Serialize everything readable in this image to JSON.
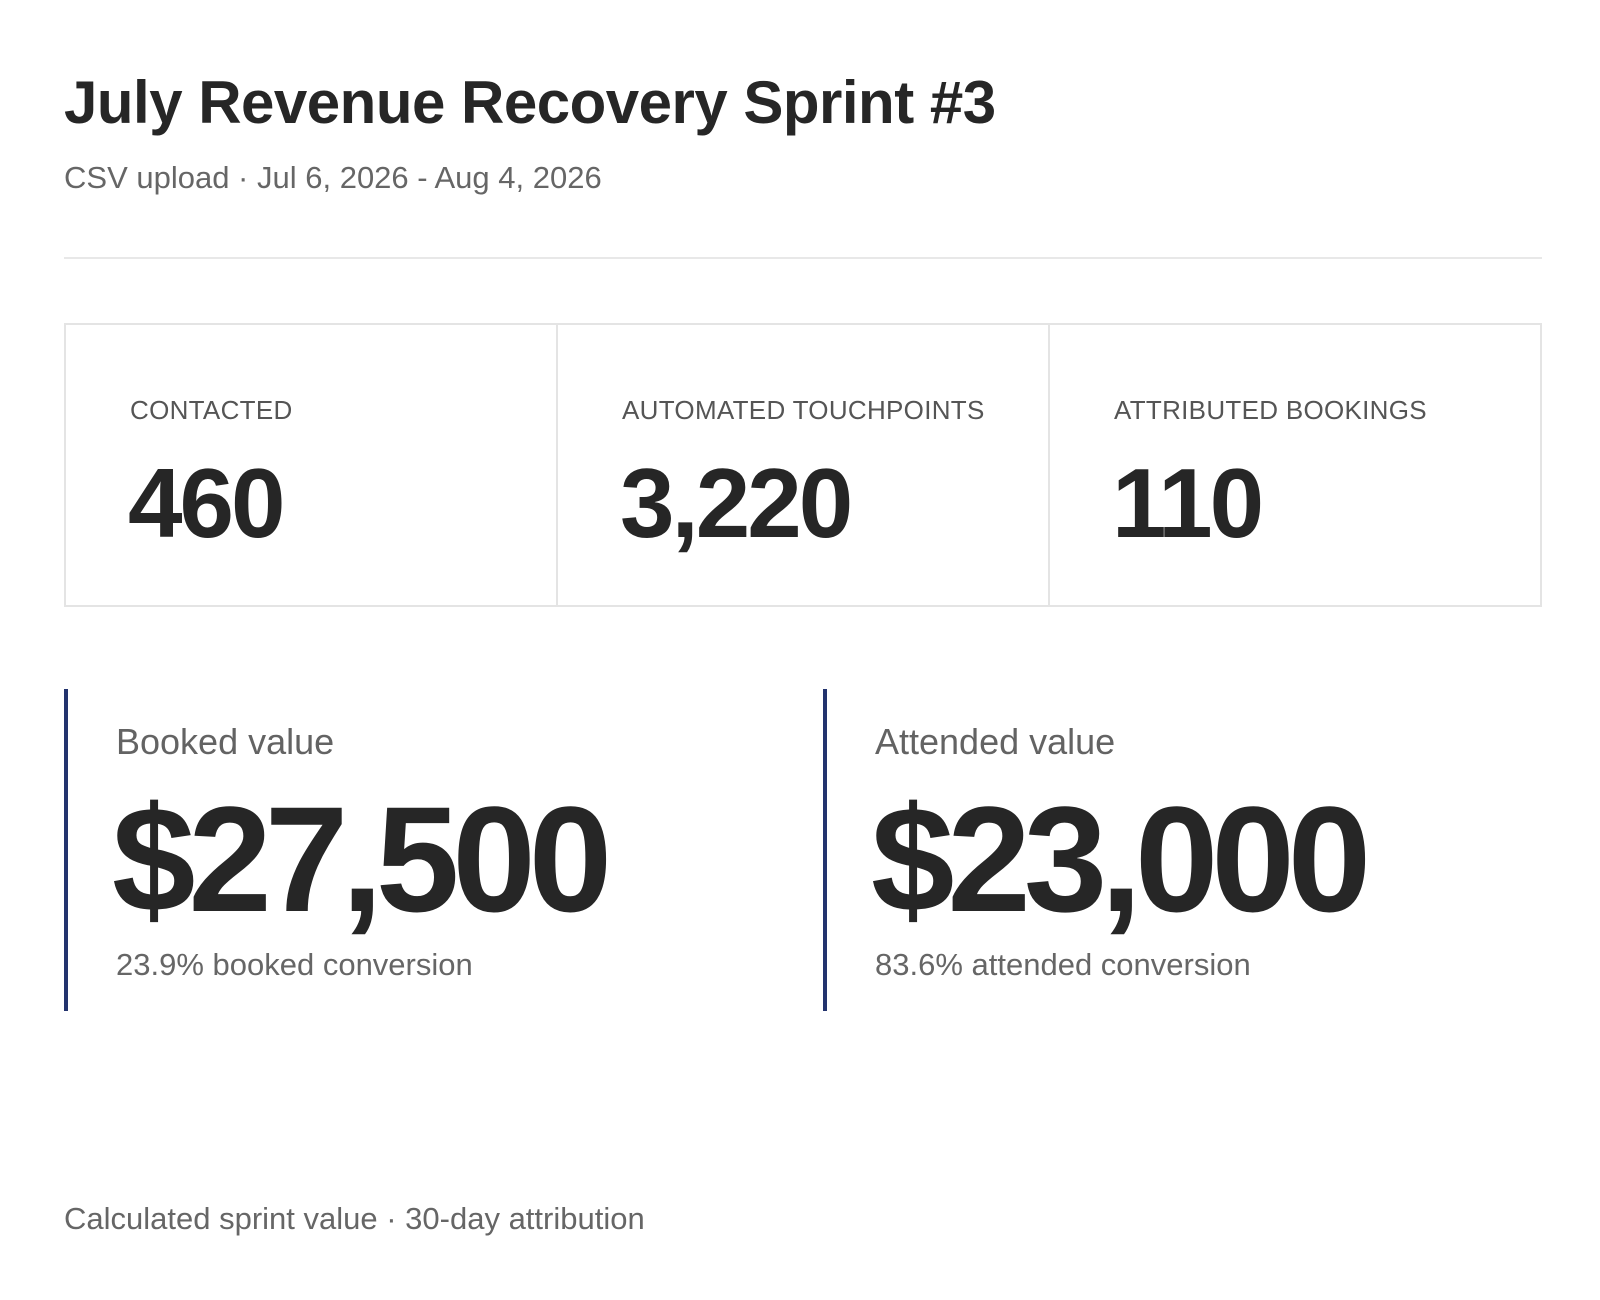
{
  "header": {
    "title": "July Revenue Recovery Sprint #3",
    "subtitle": "CSV upload · Jul 6, 2026 - Aug 4, 2026"
  },
  "stats": [
    {
      "label": "CONTACTED",
      "value": "460"
    },
    {
      "label": "AUTOMATED TOUCHPOINTS",
      "value": "3,220"
    },
    {
      "label": "ATTRIBUTED BOOKINGS",
      "value": "110"
    }
  ],
  "values": {
    "booked": {
      "label": "Booked value",
      "amount": "$27,500",
      "note": "23.9% booked conversion"
    },
    "attended": {
      "label": "Attended value",
      "amount": "$23,000",
      "note": "83.6% attended conversion"
    }
  },
  "footer": {
    "text": "Calculated sprint value · 30-day attribution"
  },
  "colors": {
    "accent": "#23336e",
    "text": "#262626",
    "muted": "#666666",
    "border": "#e4e4e4"
  }
}
